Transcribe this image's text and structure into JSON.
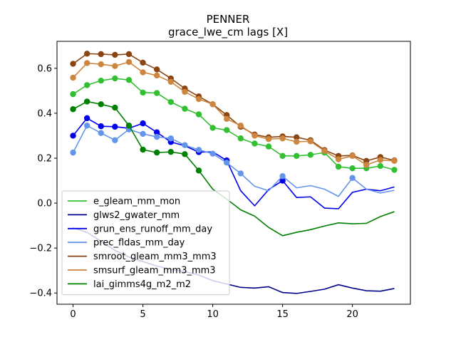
{
  "chart_data": {
    "type": "line",
    "title": "PENNER",
    "subtitle": "grace_lwe_cm lags [X]",
    "xlabel": "",
    "ylabel": "",
    "xlim": [
      -1.15,
      24.15
    ],
    "ylim": [
      -0.45,
      0.72
    ],
    "x_ticks": [
      0,
      5,
      10,
      15,
      20
    ],
    "y_ticks": [
      -0.4,
      -0.2,
      0.0,
      0.2,
      0.4,
      0.6
    ],
    "y_tick_labels": [
      "−0.4",
      "−0.2",
      "0.0",
      "0.2",
      "0.4",
      "0.6"
    ],
    "grid": false,
    "legend_position": "lower-left",
    "x": [
      0,
      1,
      2,
      3,
      4,
      5,
      6,
      7,
      8,
      9,
      10,
      11,
      12,
      13,
      14,
      15,
      16,
      17,
      18,
      19,
      20,
      21,
      22,
      23
    ],
    "series": [
      {
        "name": "e_gleam_mm_mon",
        "color": "#32c032",
        "values": [
          0.485,
          0.525,
          0.545,
          0.555,
          0.548,
          0.492,
          0.49,
          0.45,
          0.42,
          0.395,
          0.335,
          0.325,
          0.288,
          0.265,
          0.252,
          0.21,
          0.21,
          0.215,
          0.225,
          0.162,
          0.155,
          0.155,
          0.165,
          0.148
        ],
        "markers": [
          true,
          true,
          true,
          true,
          true,
          true,
          true,
          true,
          true,
          true,
          true,
          true,
          true,
          true,
          true,
          true,
          true,
          true,
          true,
          true,
          true,
          true,
          true,
          true
        ]
      },
      {
        "name": "glws2_gwater_mm",
        "color": "#00008b",
        "values": [
          -0.11,
          -0.13,
          -0.17,
          -0.21,
          -0.24,
          -0.26,
          -0.28,
          -0.295,
          -0.305,
          -0.32,
          -0.345,
          -0.36,
          -0.375,
          -0.378,
          -0.372,
          -0.398,
          -0.402,
          -0.393,
          -0.383,
          -0.363,
          -0.378,
          -0.39,
          -0.392,
          -0.38
        ],
        "markers": [
          false,
          false,
          false,
          false,
          false,
          false,
          false,
          false,
          false,
          false,
          false,
          false,
          false,
          false,
          false,
          false,
          false,
          false,
          false,
          false,
          false,
          false,
          false,
          false
        ]
      },
      {
        "name": "grun_ens_runoff_mm_day",
        "color": "#0000ee",
        "values": [
          0.3,
          0.378,
          0.342,
          0.34,
          0.333,
          0.355,
          0.315,
          0.272,
          0.255,
          0.227,
          0.228,
          0.19,
          0.055,
          -0.012,
          0.06,
          0.1,
          0.025,
          0.028,
          -0.022,
          -0.025,
          0.048,
          0.062,
          0.055,
          0.072
        ],
        "markers": [
          true,
          true,
          true,
          true,
          true,
          true,
          true,
          true,
          false,
          true,
          false,
          true,
          false,
          false,
          false,
          true,
          false,
          false,
          false,
          false,
          false,
          false,
          false,
          false
        ]
      },
      {
        "name": "prec_fldas_mm_day",
        "color": "#6495ed",
        "values": [
          0.225,
          0.345,
          0.312,
          0.28,
          0.328,
          0.308,
          0.295,
          0.288,
          0.258,
          0.237,
          0.22,
          0.18,
          0.132,
          0.075,
          0.055,
          0.12,
          0.068,
          0.078,
          0.062,
          0.03,
          0.112,
          0.062,
          0.045,
          0.057
        ],
        "markers": [
          true,
          true,
          true,
          true,
          true,
          true,
          true,
          true,
          true,
          true,
          true,
          true,
          true,
          false,
          false,
          true,
          false,
          false,
          false,
          false,
          true,
          false,
          false,
          false
        ]
      },
      {
        "name": "smroot_gleam_mm3_mm3",
        "color": "#8b4513",
        "values": [
          0.62,
          0.665,
          0.663,
          0.66,
          0.663,
          0.625,
          0.595,
          0.555,
          0.51,
          0.475,
          0.44,
          0.392,
          0.34,
          0.305,
          0.293,
          0.297,
          0.293,
          0.28,
          0.236,
          0.21,
          0.212,
          0.188,
          0.205,
          0.19
        ],
        "markers": [
          true,
          true,
          true,
          true,
          true,
          true,
          true,
          true,
          true,
          true,
          true,
          true,
          true,
          true,
          true,
          true,
          true,
          true,
          true,
          true,
          true,
          true,
          true,
          true
        ]
      },
      {
        "name": "smsurf_gleam_mm3_mm3",
        "color": "#cd853f",
        "values": [
          0.558,
          0.623,
          0.618,
          0.61,
          0.628,
          0.582,
          0.568,
          0.54,
          0.495,
          0.463,
          0.44,
          0.375,
          0.345,
          0.3,
          0.285,
          0.288,
          0.273,
          0.275,
          0.232,
          0.195,
          0.21,
          0.17,
          0.192,
          0.188
        ],
        "markers": [
          true,
          true,
          true,
          true,
          true,
          true,
          true,
          true,
          true,
          true,
          true,
          true,
          true,
          true,
          true,
          true,
          true,
          true,
          true,
          true,
          true,
          true,
          true,
          true
        ]
      },
      {
        "name": "lai_gimms4g_m2_m2",
        "color": "#008000",
        "values": [
          0.418,
          0.452,
          0.44,
          0.425,
          0.345,
          0.238,
          0.225,
          0.228,
          0.218,
          0.145,
          0.062,
          0.018,
          -0.03,
          -0.058,
          -0.108,
          -0.145,
          -0.13,
          -0.118,
          -0.102,
          -0.088,
          -0.092,
          -0.09,
          -0.06,
          -0.038
        ],
        "markers": [
          true,
          true,
          true,
          true,
          true,
          true,
          true,
          true,
          true,
          true,
          false,
          false,
          false,
          false,
          false,
          false,
          false,
          false,
          false,
          false,
          false,
          false,
          false,
          false
        ]
      }
    ]
  }
}
